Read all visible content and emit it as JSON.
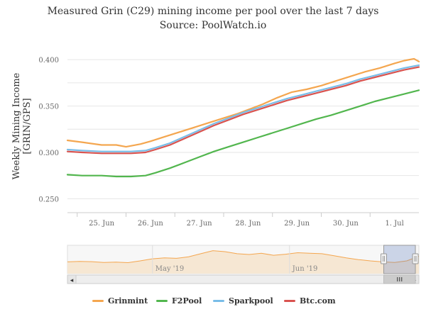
{
  "chart_data": {
    "type": "line",
    "title": "Measured Grin (C29) mining income per pool over the last 7 days",
    "subtitle": "Source: PoolWatch.io",
    "ylabel_lines": [
      "Weekly Mining Income",
      "[GRIN/GPS]"
    ],
    "x_ticks": [
      "25. Jun",
      "26. Jun",
      "27. Jun",
      "28. Jun",
      "29. Jun",
      "30. Jun",
      "1. Jul"
    ],
    "y_ticks": [
      "0.250",
      "0.300",
      "0.350",
      "0.400"
    ],
    "ylim": [
      0.235,
      0.42
    ],
    "x_range_days": [
      24.3,
      31.5
    ],
    "grid": "horizontal",
    "legend_position": "bottom",
    "series": [
      {
        "name": "Grinmint",
        "color": "#f4a64f",
        "x": [
          24.3,
          24.6,
          25.0,
          25.3,
          25.5,
          25.8,
          26.0,
          26.3,
          26.6,
          26.9,
          27.2,
          27.5,
          27.8,
          28.0,
          28.3,
          28.6,
          28.9,
          29.2,
          29.5,
          29.8,
          30.1,
          30.4,
          30.7,
          31.0,
          31.2,
          31.4,
          31.5
        ],
        "values": [
          0.313,
          0.311,
          0.308,
          0.308,
          0.306,
          0.309,
          0.312,
          0.317,
          0.322,
          0.327,
          0.332,
          0.337,
          0.342,
          0.346,
          0.352,
          0.359,
          0.365,
          0.368,
          0.372,
          0.377,
          0.382,
          0.387,
          0.391,
          0.396,
          0.399,
          0.401,
          0.398
        ]
      },
      {
        "name": "F2Pool",
        "color": "#52b64e",
        "x": [
          24.3,
          24.6,
          25.0,
          25.3,
          25.6,
          25.9,
          26.1,
          26.4,
          26.7,
          27.0,
          27.3,
          27.6,
          27.9,
          28.2,
          28.5,
          28.8,
          29.1,
          29.4,
          29.7,
          30.0,
          30.3,
          30.6,
          30.9,
          31.2,
          31.5
        ],
        "values": [
          0.276,
          0.275,
          0.275,
          0.274,
          0.274,
          0.275,
          0.278,
          0.283,
          0.289,
          0.295,
          0.301,
          0.306,
          0.311,
          0.316,
          0.321,
          0.326,
          0.331,
          0.336,
          0.34,
          0.345,
          0.35,
          0.355,
          0.359,
          0.363,
          0.367
        ]
      },
      {
        "name": "Sparkpool",
        "color": "#79bde8",
        "x": [
          24.3,
          24.6,
          25.0,
          25.3,
          25.6,
          25.9,
          26.1,
          26.4,
          26.7,
          27.0,
          27.3,
          27.6,
          27.9,
          28.2,
          28.5,
          28.8,
          29.1,
          29.4,
          29.7,
          30.0,
          30.3,
          30.6,
          30.9,
          31.2,
          31.5
        ],
        "values": [
          0.303,
          0.302,
          0.301,
          0.301,
          0.301,
          0.302,
          0.305,
          0.31,
          0.317,
          0.324,
          0.331,
          0.337,
          0.343,
          0.348,
          0.353,
          0.358,
          0.362,
          0.366,
          0.37,
          0.374,
          0.379,
          0.383,
          0.387,
          0.391,
          0.394
        ]
      },
      {
        "name": "Btc.com",
        "color": "#d9534f",
        "x": [
          24.3,
          24.6,
          25.0,
          25.3,
          25.6,
          25.9,
          26.1,
          26.4,
          26.7,
          27.0,
          27.3,
          27.6,
          27.9,
          28.2,
          28.5,
          28.8,
          29.1,
          29.4,
          29.7,
          30.0,
          30.3,
          30.6,
          30.9,
          31.2,
          31.5
        ],
        "values": [
          0.301,
          0.3,
          0.299,
          0.299,
          0.299,
          0.3,
          0.303,
          0.308,
          0.315,
          0.322,
          0.329,
          0.335,
          0.341,
          0.346,
          0.351,
          0.356,
          0.36,
          0.364,
          0.368,
          0.372,
          0.377,
          0.381,
          0.385,
          0.389,
          0.392
        ]
      }
    ],
    "navigator": {
      "labels": [
        "May '19",
        "Jun '19"
      ],
      "series_values": [
        0.46,
        0.48,
        0.47,
        0.44,
        0.45,
        0.43,
        0.5,
        0.58,
        0.62,
        0.6,
        0.66,
        0.78,
        0.9,
        0.86,
        0.78,
        0.75,
        0.8,
        0.72,
        0.76,
        0.82,
        0.8,
        0.78,
        0.7,
        0.62,
        0.55,
        0.5,
        0.46,
        0.44,
        0.5,
        0.68
      ],
      "selected_range": [
        0.9,
        0.99
      ]
    }
  }
}
